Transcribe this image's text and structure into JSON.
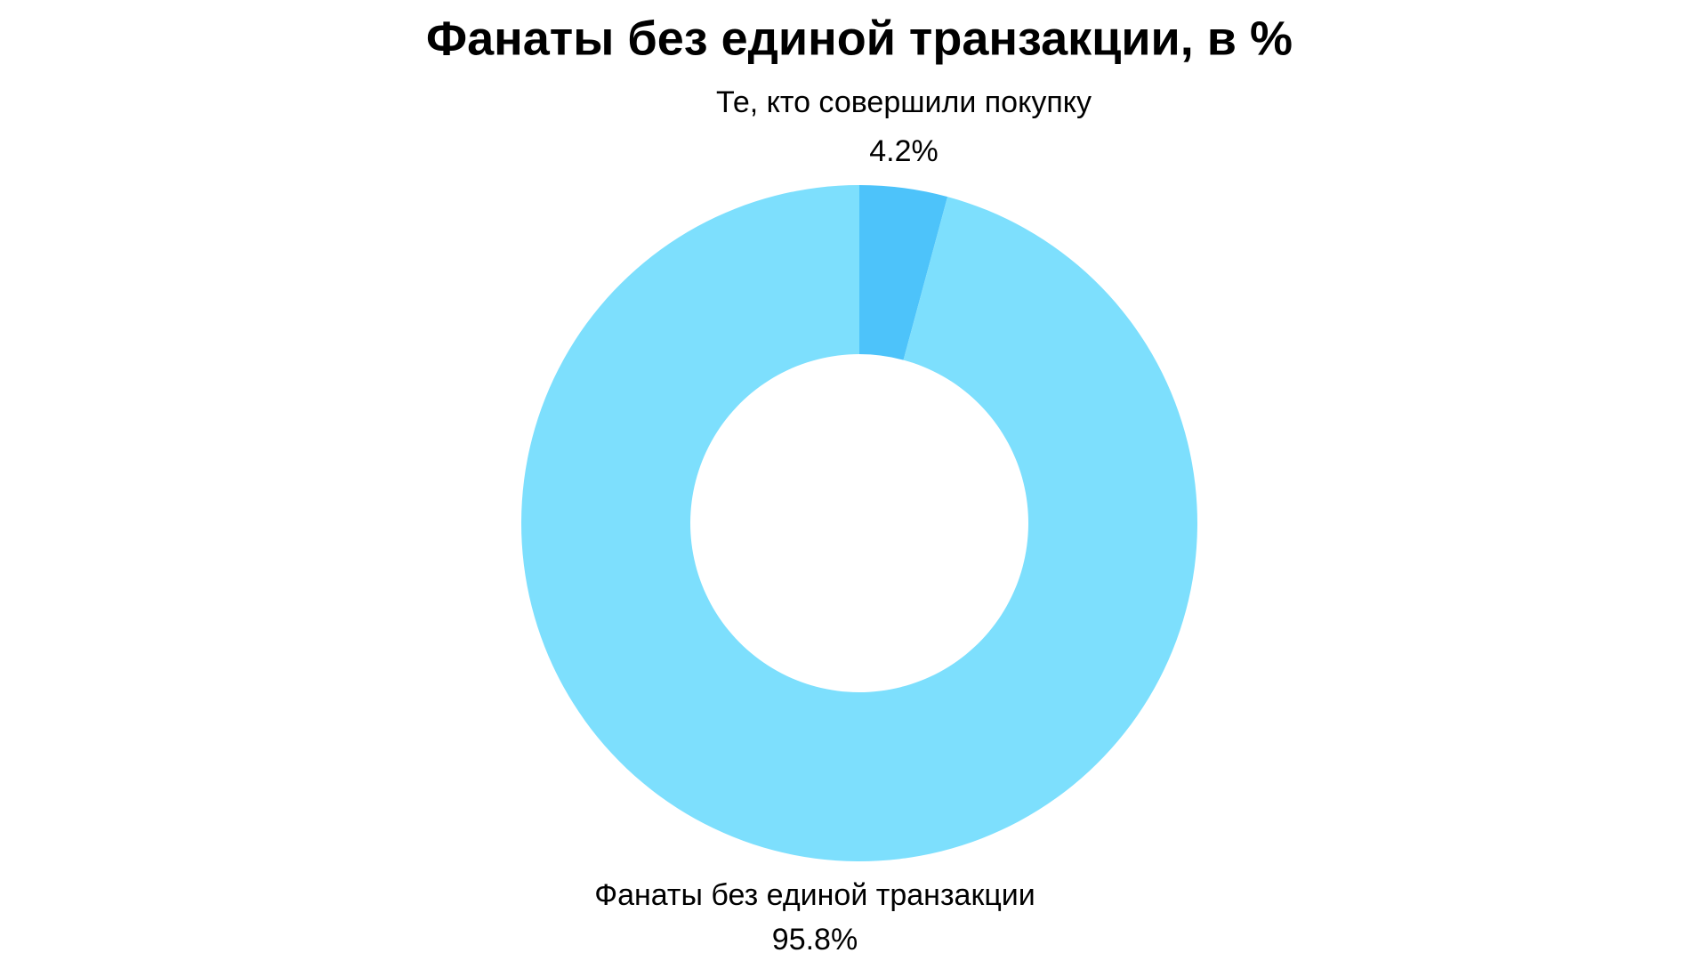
{
  "chart_data": {
    "type": "donut",
    "title": "Фанаты без единой транзакции, в %",
    "categories": [
      "Те, кто совершили покупку",
      "Фанаты без единой транзакции"
    ],
    "values": [
      4.2,
      95.8
    ],
    "value_labels": [
      "4.2%",
      "95.8%"
    ],
    "colors": [
      "#4dc3fa",
      "#7ddffd"
    ]
  }
}
